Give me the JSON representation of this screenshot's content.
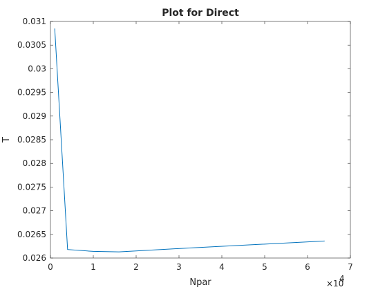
{
  "chart_data": {
    "type": "line",
    "title": "Plot for Direct",
    "xlabel": "Npar",
    "ylabel": "T",
    "x_multiplier_label": "×10",
    "x_multiplier_exponent": "4",
    "xlim": [
      0,
      7
    ],
    "ylim": [
      0.026,
      0.031
    ],
    "x_ticks": [
      0,
      1,
      2,
      3,
      4,
      5,
      6,
      7
    ],
    "x_tick_labels": [
      "0",
      "1",
      "2",
      "3",
      "4",
      "5",
      "6",
      "7"
    ],
    "y_ticks": [
      0.026,
      0.0265,
      0.027,
      0.0275,
      0.028,
      0.0285,
      0.029,
      0.0295,
      0.03,
      0.0305,
      0.031
    ],
    "y_tick_labels": [
      "0.026",
      "0.0265",
      "0.027",
      "0.0275",
      "0.028",
      "0.0285",
      "0.029",
      "0.0295",
      "0.03",
      "0.0305",
      "0.031"
    ],
    "grid": false,
    "line_color": "#0072BD",
    "series": [
      {
        "x": [
          0.1,
          0.4,
          1.0,
          1.6,
          3.2,
          6.4
        ],
        "values": [
          0.03085,
          0.02618,
          0.02614,
          0.02613,
          0.02621,
          0.02636
        ]
      }
    ]
  }
}
